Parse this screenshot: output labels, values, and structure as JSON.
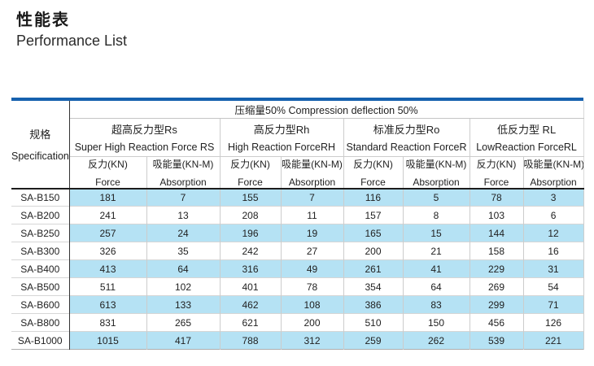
{
  "page": {
    "title_zh": "性能表",
    "title_en": "Performance List"
  },
  "colors": {
    "accent_blue": "#1661ae",
    "stripe_blue": "#b5e2f4"
  },
  "table": {
    "compression_header": "压缩量50% Compression deflection  50%",
    "spec_header": {
      "zh": "规格",
      "en": "Specification"
    },
    "groups": [
      {
        "zh": "超高反力型Rs",
        "en": "Super High Reaction Force RS"
      },
      {
        "zh": "高反力型Rh",
        "en": "High Reaction ForceRH"
      },
      {
        "zh": "标准反力型Ro",
        "en": "Standard Reaction ForceR"
      },
      {
        "zh": "低反力型 RL",
        "en": "LowReaction ForceRL"
      }
    ],
    "subcolumns": {
      "force_zh": "反力(KN)",
      "force_en": "Force",
      "absorption_zh": "吸能量(KN-M)",
      "absorption_en": "Absorption"
    },
    "rows": [
      {
        "spec": "SA-B150",
        "values": [
          181,
          7,
          155,
          7,
          116,
          5,
          78,
          3
        ]
      },
      {
        "spec": "SA-B200",
        "values": [
          241,
          13,
          208,
          11,
          157,
          8,
          103,
          6
        ]
      },
      {
        "spec": "SA-B250",
        "values": [
          257,
          24,
          196,
          19,
          165,
          15,
          144,
          12
        ]
      },
      {
        "spec": "SA-B300",
        "values": [
          326,
          35,
          242,
          27,
          200,
          21,
          158,
          16
        ]
      },
      {
        "spec": "SA-B400",
        "values": [
          413,
          64,
          316,
          49,
          261,
          41,
          229,
          31
        ]
      },
      {
        "spec": "SA-B500",
        "values": [
          511,
          102,
          401,
          78,
          354,
          64,
          269,
          54
        ]
      },
      {
        "spec": "SA-B600",
        "values": [
          613,
          133,
          462,
          108,
          386,
          83,
          299,
          71
        ]
      },
      {
        "spec": "SA-B800",
        "values": [
          831,
          265,
          621,
          200,
          510,
          150,
          456,
          126
        ]
      },
      {
        "spec": "SA-B1000",
        "values": [
          1015,
          417,
          788,
          312,
          259,
          262,
          539,
          221
        ]
      }
    ]
  }
}
